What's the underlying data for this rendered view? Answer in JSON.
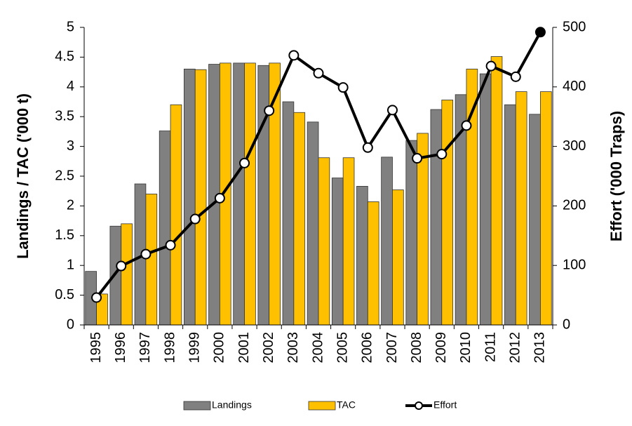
{
  "chart_data": {
    "type": "bar",
    "categories": [
      "1995",
      "1996",
      "1997",
      "1998",
      "1999",
      "2000",
      "2001",
      "2002",
      "2003",
      "2004",
      "2005",
      "2006",
      "2007",
      "2008",
      "2009",
      "2010",
      "2011",
      "2012",
      "2013"
    ],
    "y_label": "Landings / TAC ('000 t)",
    "y2_label": "Effort ('000 Traps)",
    "series": [
      {
        "name": "Landings",
        "type": "bar",
        "color": "#808080",
        "values": [
          0.9,
          1.66,
          2.37,
          3.26,
          4.3,
          4.38,
          4.4,
          4.36,
          3.75,
          3.41,
          2.47,
          2.33,
          2.82,
          3.1,
          3.62,
          3.87,
          4.22,
          3.7,
          3.54
        ]
      },
      {
        "name": "TAC",
        "type": "bar",
        "color": "#FFC000",
        "values": [
          0.52,
          1.7,
          2.2,
          3.7,
          4.29,
          4.4,
          4.4,
          4.4,
          3.57,
          2.81,
          2.81,
          2.07,
          2.27,
          3.22,
          3.78,
          4.3,
          4.51,
          3.92,
          3.92
        ]
      },
      {
        "name": "Effort",
        "type": "line",
        "axis": "y2",
        "color": "#000000",
        "values": [
          46,
          99,
          119,
          134,
          178,
          213,
          272,
          360,
          453,
          423,
          399,
          298,
          361,
          280,
          287,
          335,
          435,
          417,
          492
        ]
      }
    ],
    "ylim": [
      0,
      5
    ],
    "yticks": [
      0,
      0.5,
      1,
      1.5,
      2,
      2.5,
      3,
      3.5,
      4,
      4.5,
      5
    ],
    "y2lim": [
      0,
      500
    ],
    "y2ticks": [
      0,
      100,
      200,
      300,
      400,
      500
    ],
    "legend": "bottom"
  }
}
